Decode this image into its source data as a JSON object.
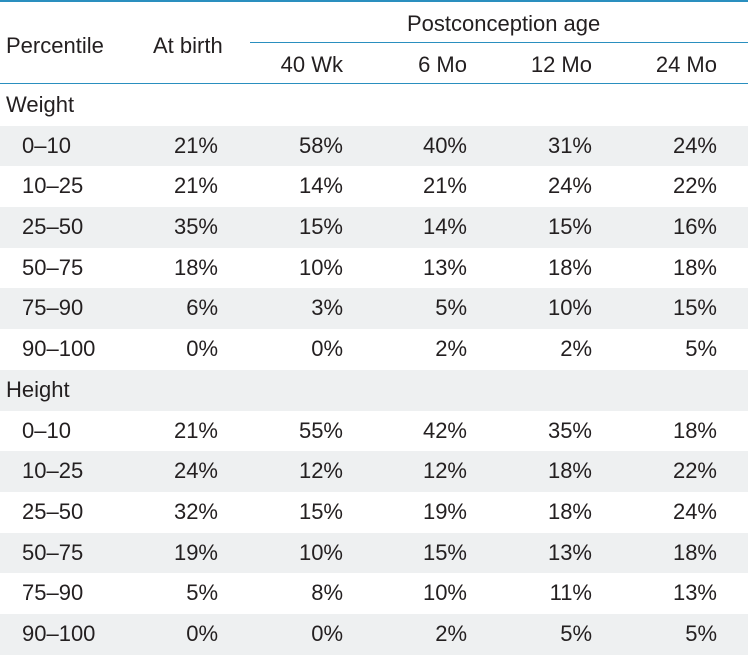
{
  "header": {
    "percentile": "Percentile",
    "at_birth": "At birth",
    "group": "Postconception age",
    "cols": [
      "40 Wk",
      "6 Mo",
      "12 Mo",
      "24 Mo"
    ]
  },
  "sections": [
    {
      "title": "Weight",
      "rows": [
        {
          "p": "0–10",
          "v": [
            "21%",
            "58%",
            "40%",
            "31%",
            "24%"
          ]
        },
        {
          "p": "10–25",
          "v": [
            "21%",
            "14%",
            "21%",
            "24%",
            "22%"
          ]
        },
        {
          "p": "25–50",
          "v": [
            "35%",
            "15%",
            "14%",
            "15%",
            "16%"
          ]
        },
        {
          "p": "50–75",
          "v": [
            "18%",
            "10%",
            "13%",
            "18%",
            "18%"
          ]
        },
        {
          "p": "75–90",
          "v": [
            "6%",
            "3%",
            "5%",
            "10%",
            "15%"
          ]
        },
        {
          "p": "90–100",
          "v": [
            "0%",
            "0%",
            "2%",
            "2%",
            "5%"
          ]
        }
      ]
    },
    {
      "title": "Height",
      "rows": [
        {
          "p": "0–10",
          "v": [
            "21%",
            "55%",
            "42%",
            "35%",
            "18%"
          ]
        },
        {
          "p": "10–25",
          "v": [
            "24%",
            "12%",
            "12%",
            "18%",
            "22%"
          ]
        },
        {
          "p": "25–50",
          "v": [
            "32%",
            "15%",
            "19%",
            "18%",
            "24%"
          ]
        },
        {
          "p": "50–75",
          "v": [
            "19%",
            "10%",
            "15%",
            "13%",
            "18%"
          ]
        },
        {
          "p": "75–90",
          "v": [
            "5%",
            "8%",
            "10%",
            "11%",
            "13%"
          ]
        },
        {
          "p": "90–100",
          "v": [
            "0%",
            "0%",
            "2%",
            "5%",
            "5%"
          ]
        }
      ]
    }
  ]
}
